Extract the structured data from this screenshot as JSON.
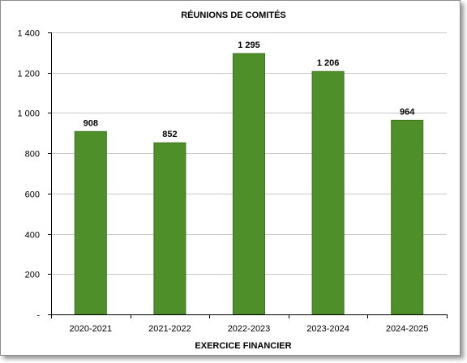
{
  "chart_data": {
    "type": "bar",
    "title": "RÉUNIONS DE COMITÉS",
    "xlabel": "EXERCICE FINANCIER",
    "ylabel": "",
    "categories": [
      "2020-2021",
      "2021-2022",
      "2022-2023",
      "2023-2024",
      "2024-2025"
    ],
    "values": [
      908,
      852,
      1295,
      1206,
      964
    ],
    "value_labels": [
      "908",
      "852",
      "1 295",
      "1 206",
      "964"
    ],
    "ylim": [
      0,
      1400
    ],
    "yticks": [
      0,
      200,
      400,
      600,
      800,
      1000,
      1200,
      1400
    ],
    "ytick_labels": [
      "-",
      "200",
      "400",
      "600",
      "800",
      "1 000",
      "1 200",
      "1 400"
    ],
    "grid": true,
    "bar_color": "#4e8f2a",
    "bar_edge_color": "#3d7420",
    "grid_color": "#c8c8c8"
  }
}
